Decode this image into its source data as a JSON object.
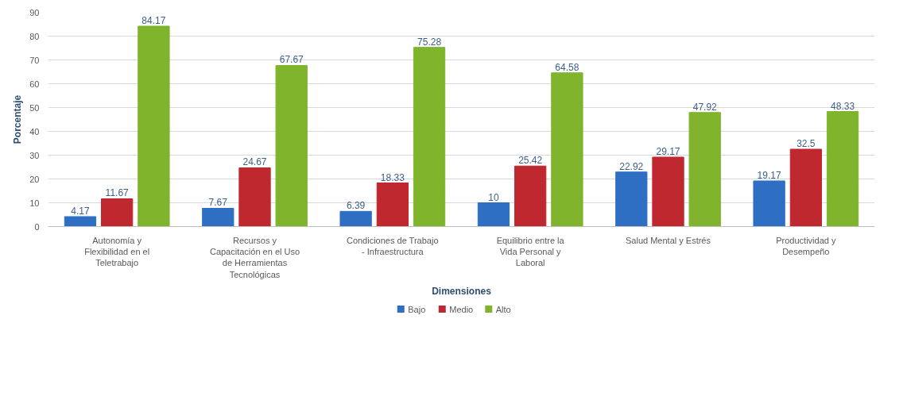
{
  "chart_data": {
    "type": "bar",
    "xlabel": "Dimensiones",
    "ylabel": "Porcentaje",
    "categories": [
      "Autonomía y Flexibilidad en el Teletrabajo",
      "Recursos y Capacitación en el Uso de Herramientas Tecnológicas",
      "Condiciones de Trabajo - Infraestructura",
      "Equilibrio entre la Vida Personal y Laboral",
      "Salud Mental y Estrés",
      "Productividad y Desempeño"
    ],
    "series": [
      {
        "name": "Bajo",
        "color": "#2e6fc4",
        "values": [
          4.17,
          7.67,
          6.39,
          10,
          22.92,
          19.17
        ]
      },
      {
        "name": "Medio",
        "color": "#c0282f",
        "values": [
          11.67,
          24.67,
          18.33,
          25.42,
          29.17,
          32.5
        ]
      },
      {
        "name": "Alto",
        "color": "#7fb42c",
        "values": [
          84.17,
          67.67,
          75.28,
          64.58,
          47.92,
          48.33
        ]
      }
    ],
    "ylim": [
      0,
      90
    ],
    "yticks": [
      0,
      10,
      20,
      30,
      40,
      50,
      60,
      70,
      80,
      90
    ],
    "grid": "y",
    "legend": "bottom",
    "data_labels": true
  }
}
